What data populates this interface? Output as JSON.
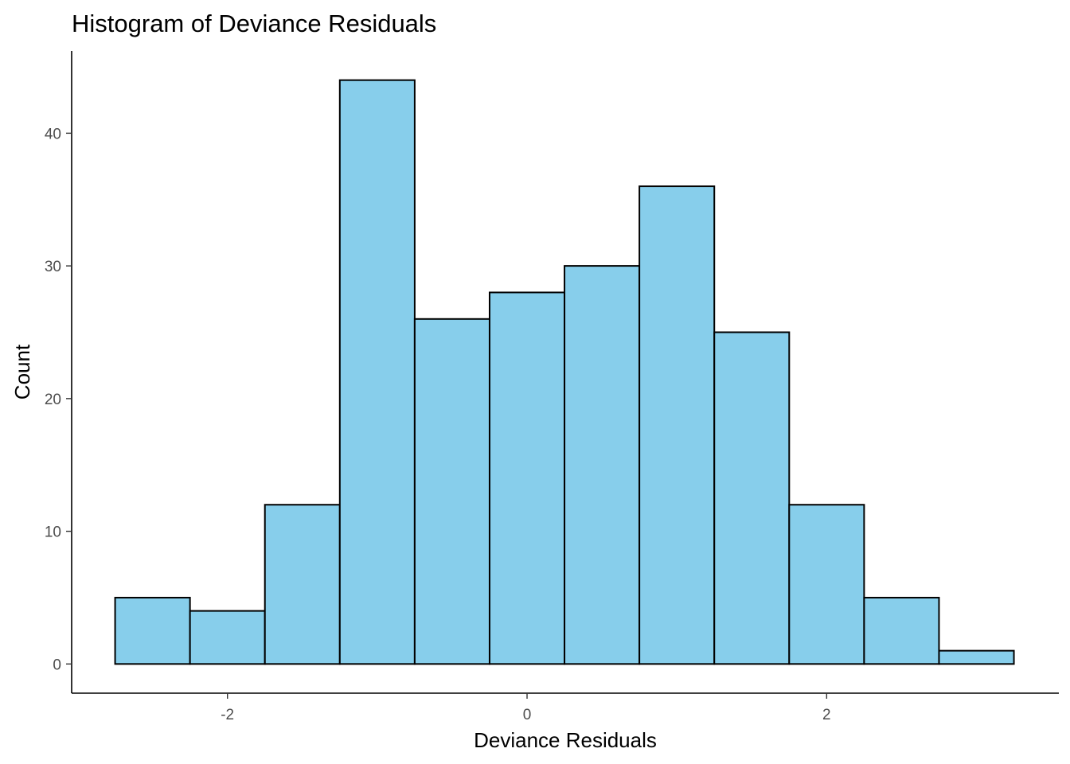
{
  "chart_data": {
    "type": "bar",
    "title": "Histogram of Deviance Residuals",
    "xlabel": "Deviance Residuals",
    "ylabel": "Count",
    "bin_width": 0.5,
    "bins": [
      {
        "x0": -2.75,
        "x1": -2.25,
        "count": 5
      },
      {
        "x0": -2.25,
        "x1": -1.75,
        "count": 4
      },
      {
        "x0": -1.75,
        "x1": -1.25,
        "count": 12
      },
      {
        "x0": -1.25,
        "x1": -0.75,
        "count": 44
      },
      {
        "x0": -0.75,
        "x1": -0.25,
        "count": 26
      },
      {
        "x0": -0.25,
        "x1": 0.25,
        "count": 28
      },
      {
        "x0": 0.25,
        "x1": 0.75,
        "count": 30
      },
      {
        "x0": 0.75,
        "x1": 1.25,
        "count": 36
      },
      {
        "x0": 1.25,
        "x1": 1.75,
        "count": 25
      },
      {
        "x0": 1.75,
        "x1": 2.25,
        "count": 12
      },
      {
        "x0": 2.25,
        "x1": 2.75,
        "count": 5
      },
      {
        "x0": 2.75,
        "x1": 3.25,
        "count": 1
      }
    ],
    "xlim": [
      -3.04,
      3.55
    ],
    "ylim": [
      -2.2,
      46.2
    ],
    "x_ticks": [
      -2,
      0,
      2
    ],
    "y_ticks": [
      0,
      10,
      20,
      30,
      40
    ],
    "bar_fill": "#87CEEB",
    "bar_outline": "#000000",
    "grid": false,
    "legend": "none"
  }
}
